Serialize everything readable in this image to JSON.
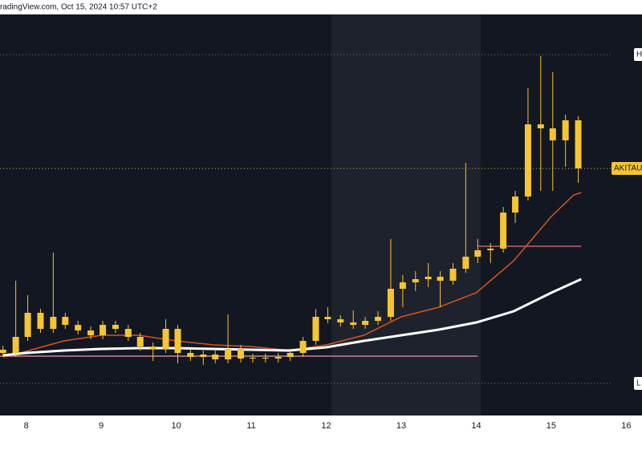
{
  "chart_data": {
    "type": "candlestick",
    "header": "radingView.com, Oct 15, 2024 10:57 UTC+2",
    "x": [
      7.69,
      7.86,
      8.02,
      8.19,
      8.36,
      8.52,
      8.69,
      8.86,
      9.02,
      9.19,
      9.36,
      9.52,
      9.69,
      9.86,
      10.02,
      10.19,
      10.36,
      10.52,
      10.69,
      10.86,
      11.02,
      11.19,
      11.36,
      11.52,
      11.69,
      11.86,
      12.02,
      12.19,
      12.36,
      12.52,
      12.69,
      12.86,
      13.02,
      13.19,
      13.36,
      13.52,
      13.69,
      13.86,
      14.02,
      14.19,
      14.36,
      14.52,
      14.69,
      14.86,
      15.02,
      15.19,
      15.36
    ],
    "open": [
      16.4,
      15.6,
      19.6,
      25.6,
      21.6,
      24.6,
      22.6,
      21.2,
      20,
      22.6,
      21.6,
      19.6,
      17.2,
      16.6,
      21.6,
      15.6,
      14.6,
      15.2,
      14,
      16.6,
      14.2,
      14.4,
      14.2,
      14.6,
      15.6,
      18.6,
      24.6,
      24,
      23.2,
      22.6,
      23.6,
      24.6,
      31.6,
      33.2,
      34,
      34.6,
      33.6,
      36.6,
      39.6,
      41.2,
      41.6,
      50.6,
      54.6,
      72.6,
      71.6,
      68.6,
      73.6
    ],
    "high": [
      17.4,
      33.6,
      30,
      26.6,
      40.6,
      25.6,
      23.6,
      22.2,
      23.6,
      23.6,
      22.6,
      20.6,
      18.2,
      24,
      22.6,
      16.6,
      16.2,
      16.2,
      25.2,
      17.6,
      15.4,
      15.4,
      15.6,
      16.6,
      19.6,
      26.6,
      27,
      25,
      26.2,
      24.6,
      26,
      44,
      35,
      36,
      38,
      36,
      38,
      63,
      44,
      43,
      52,
      56,
      81.6,
      89.6,
      85.6,
      75,
      74.6
    ],
    "low": [
      14.6,
      14.6,
      18.6,
      20.6,
      20.6,
      21.6,
      20.2,
      19,
      19,
      20.6,
      18.6,
      16.2,
      13.6,
      15.6,
      13,
      13.6,
      12.6,
      13,
      13,
      13.2,
      13.2,
      13.2,
      13.2,
      13.6,
      14.6,
      17.6,
      23,
      22.2,
      21.6,
      21.6,
      22.6,
      23.6,
      27,
      31,
      32,
      27,
      32.6,
      35.6,
      38,
      38,
      40.6,
      48,
      53.6,
      56,
      56,
      62,
      58
    ],
    "close": [
      15.6,
      19.6,
      25.6,
      21.6,
      24.6,
      22.6,
      21.2,
      20,
      22.6,
      21.6,
      19.6,
      17.2,
      16.6,
      21.6,
      15.6,
      14.6,
      15.2,
      14,
      16.6,
      14.2,
      14.4,
      14.2,
      14.6,
      15.6,
      18.6,
      24.6,
      24,
      23.2,
      22.6,
      23.6,
      24.6,
      31.6,
      33.2,
      34,
      34.6,
      33.6,
      36.6,
      39.6,
      41.2,
      41.6,
      50.6,
      54.6,
      72.6,
      71.6,
      68.6,
      73.6,
      61.6
    ],
    "candle_color": "#f7c531",
    "series": [
      {
        "color": "#d9541e",
        "x": [
          7.69,
          8,
          8.5,
          9,
          9.5,
          10,
          10.5,
          11,
          11.5,
          12,
          12.5,
          13,
          13.5,
          14,
          14.5,
          15,
          15.3,
          15.4
        ],
        "values": [
          14.6,
          16,
          18.6,
          20,
          20,
          18.6,
          17.6,
          17.2,
          16.2,
          17.6,
          20,
          24.6,
          27,
          30.6,
          38.6,
          49.6,
          55,
          55.6
        ]
      },
      {
        "color": "#ffffff",
        "x": [
          7.69,
          8,
          8.5,
          9,
          9.5,
          10,
          10.5,
          11,
          11.5,
          12,
          12.5,
          13,
          13.5,
          14,
          14.5,
          15,
          15.4
        ],
        "values": [
          15,
          15.6,
          16.2,
          16.6,
          16.8,
          16.8,
          16.6,
          16.4,
          16.2,
          17,
          18.6,
          20,
          21.4,
          23.2,
          26,
          30.6,
          34
        ]
      }
    ],
    "levels": [
      {
        "label": "H",
        "value": 90,
        "color": "#787b86"
      },
      {
        "label": "AKITAU",
        "value": 61.6,
        "color": "#f7c531"
      },
      {
        "label": "L",
        "value": 8,
        "color": "#787b86"
      }
    ],
    "segments": [
      {
        "value": 42.2,
        "x": [
          14.02,
          15.4
        ],
        "color": "#9c4a5a"
      },
      {
        "value": 14.8,
        "x": [
          7.65,
          14.02
        ],
        "color": "#9c6a7a"
      }
    ],
    "highlight_range": [
      12.07,
      14.06
    ],
    "xlim": [
      7.65,
      16.21
    ],
    "ylim": [
      0,
      100
    ],
    "xticks": [
      8,
      9,
      10,
      11,
      12,
      13,
      14,
      15,
      16
    ]
  }
}
